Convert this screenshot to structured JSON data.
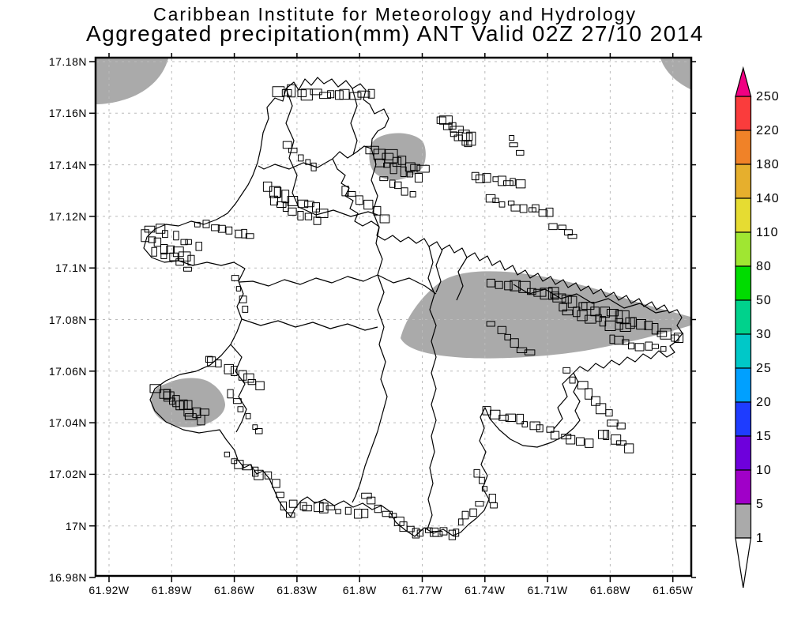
{
  "title": {
    "line1": "Caribbean Institute for Meteorology and Hydrology",
    "line2": "Aggregated precipitation(mm) ANT Valid 02Z 27/10 2014"
  },
  "axes": {
    "y_ticks": [
      "17.18N",
      "17.16N",
      "17.14N",
      "17.12N",
      "17.1N",
      "17.08N",
      "17.06N",
      "17.04N",
      "17.02N",
      "17N",
      "16.98N"
    ],
    "x_ticks": [
      "61.92W",
      "61.89W",
      "61.86W",
      "61.83W",
      "61.8W",
      "61.77W",
      "61.74W",
      "61.71W",
      "61.68W",
      "61.65W"
    ]
  },
  "colorbar": {
    "levels_top_to_bottom": [
      "250",
      "220",
      "180",
      "140",
      "110",
      "80",
      "50",
      "30",
      "25",
      "20",
      "15",
      "10",
      "5",
      "1"
    ],
    "segment_colors_top_to_bottom": [
      "#fa3c3c",
      "#f08228",
      "#e6af2d",
      "#e6dc32",
      "#a0e632",
      "#00dc00",
      "#00d28c",
      "#00c8c8",
      "#00a0ff",
      "#1e3cff",
      "#6e00dc",
      "#a000c8",
      "#aaaaaa"
    ],
    "above_max_color": "#f00082",
    "below_min_color": "#ffffff"
  },
  "map": {
    "shade_color": "#aaaaaa",
    "shade_meaning": "precipitation 1-5 mm",
    "line_color": "#000000",
    "grid_color": "#bbbbbb"
  }
}
